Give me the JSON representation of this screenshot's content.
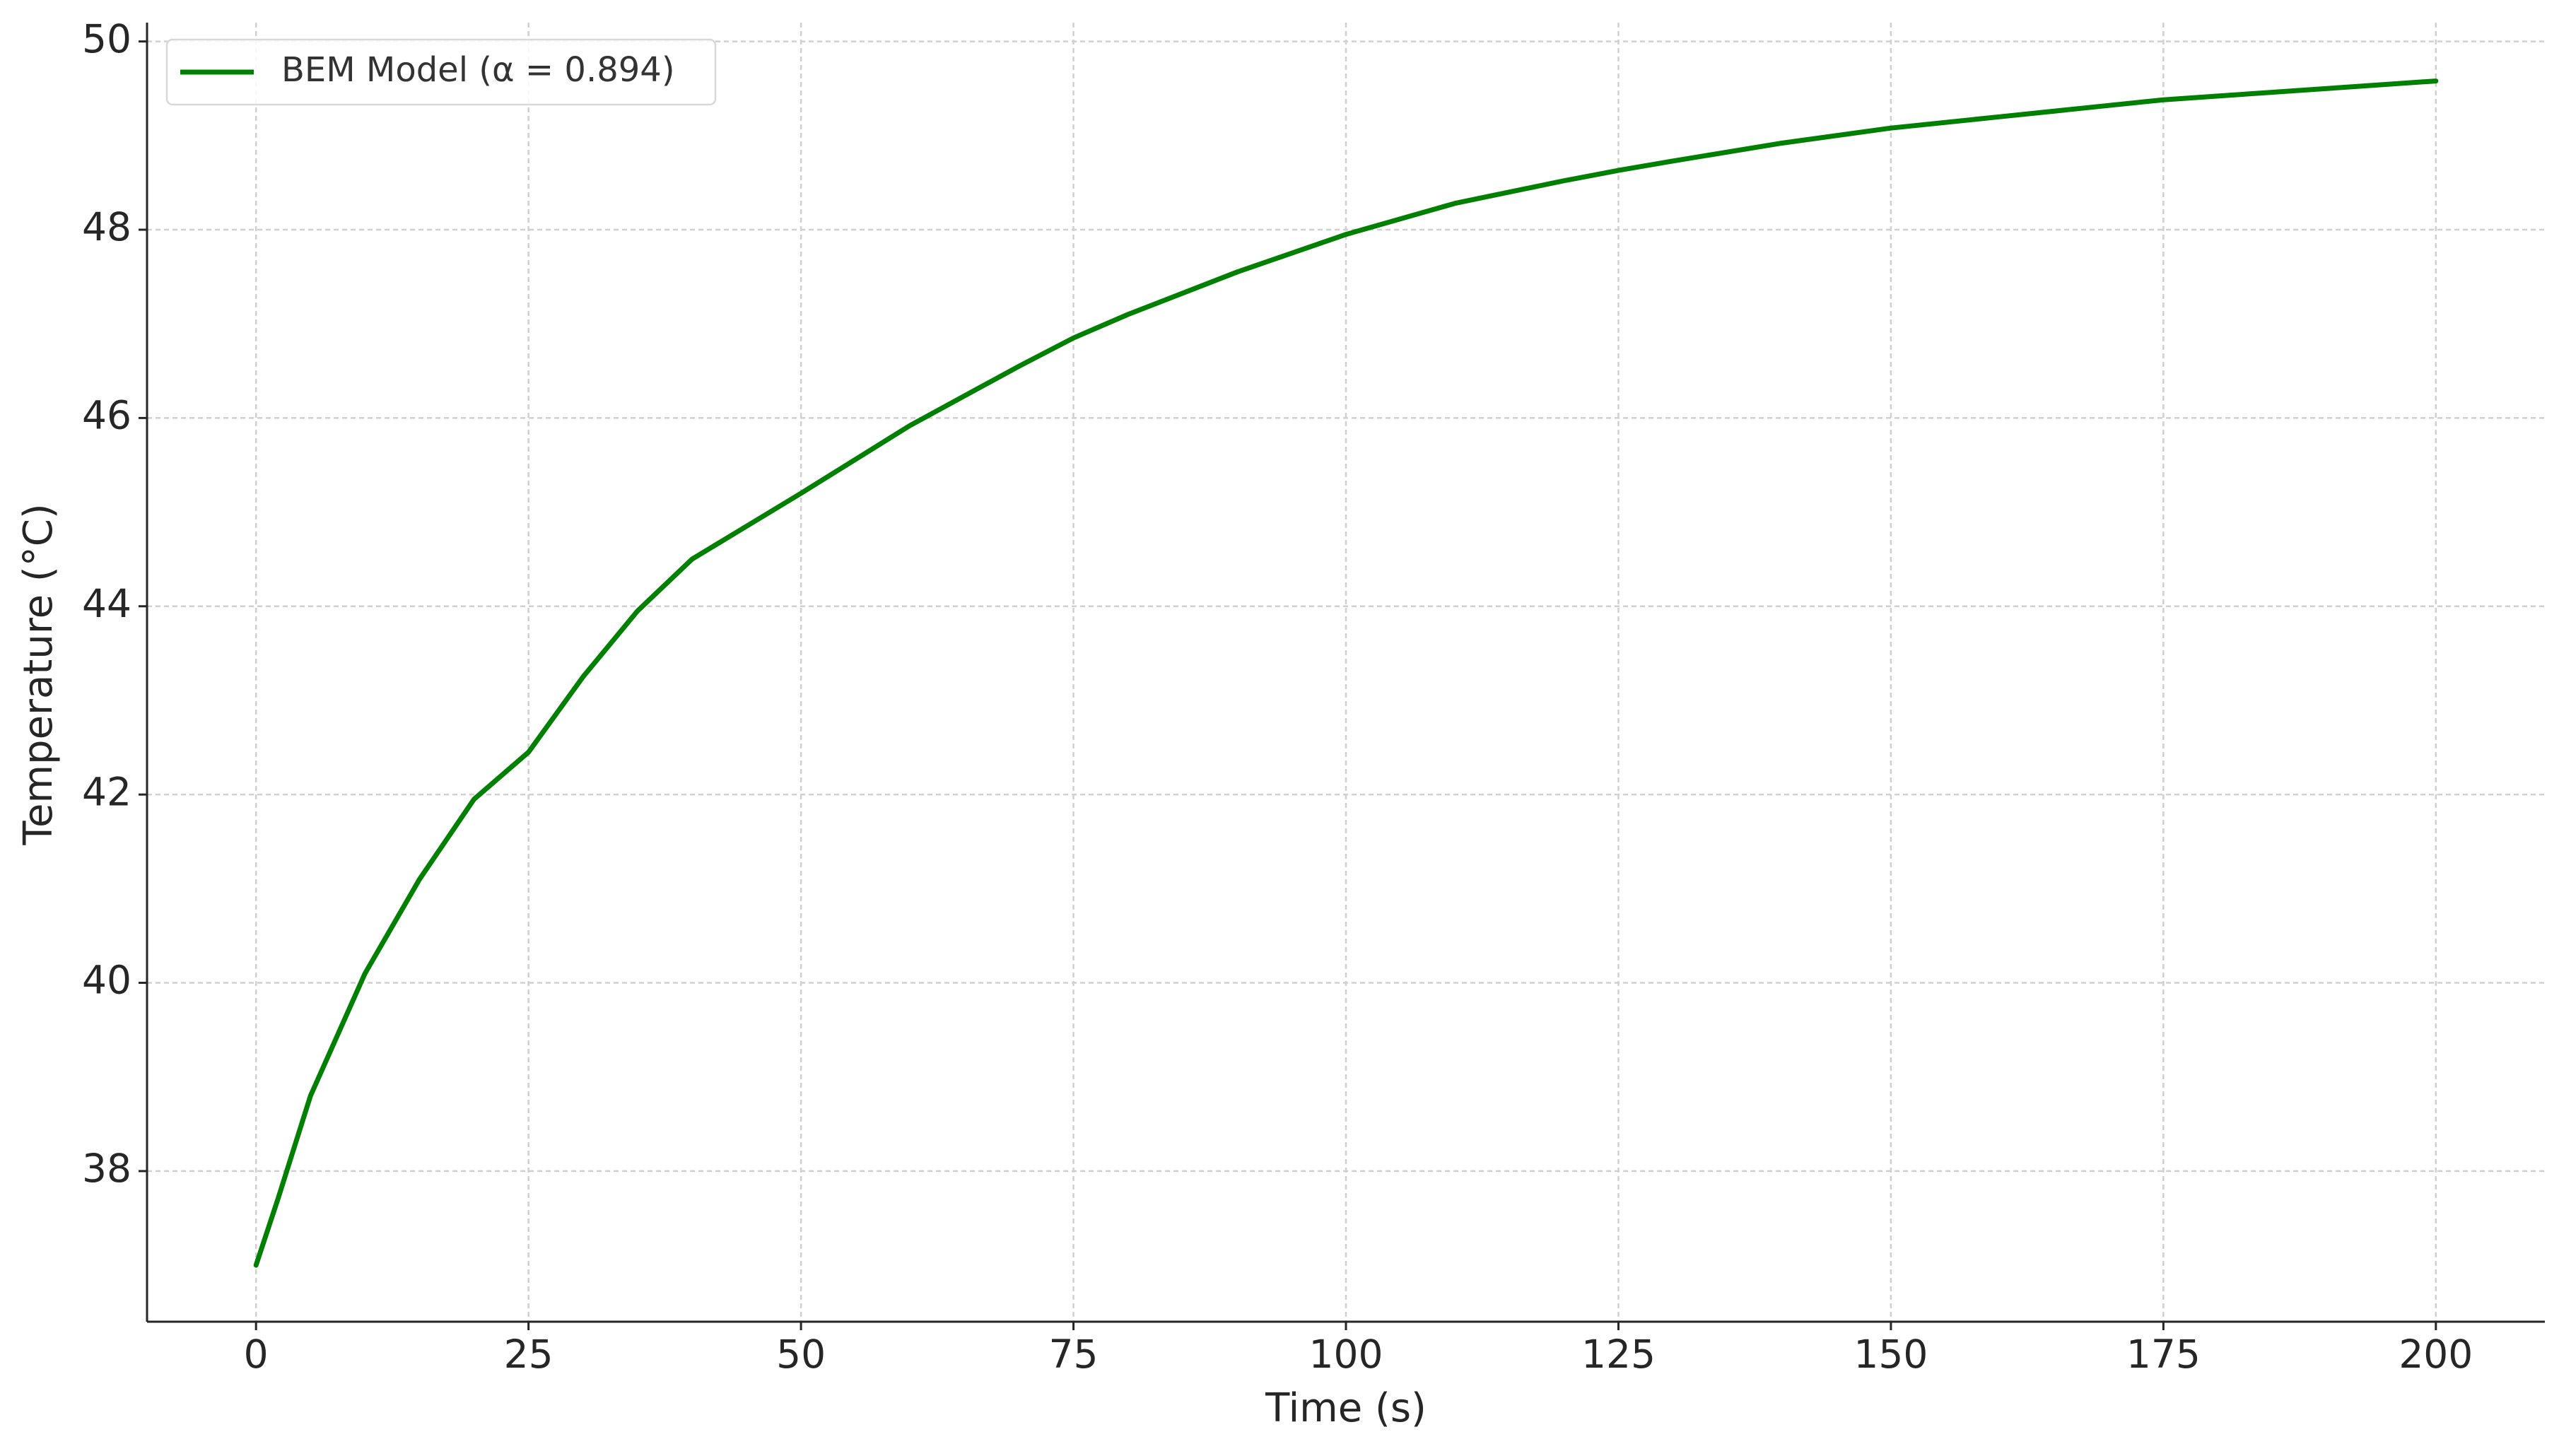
{
  "chart_data": {
    "type": "line",
    "xlabel": "Time (s)",
    "ylabel": "Temperature (°C)",
    "x": [
      0,
      2,
      5,
      10,
      15,
      20,
      25,
      30,
      35,
      40,
      50,
      60,
      70,
      75,
      80,
      90,
      100,
      110,
      120,
      125,
      130,
      140,
      150,
      160,
      170,
      175,
      180,
      190,
      200
    ],
    "series": [
      {
        "name": "BEM Model (α = 0.894)",
        "color": "#008000",
        "values": [
          37.0,
          37.7,
          38.8,
          40.1,
          41.1,
          41.95,
          42.45,
          43.25,
          43.95,
          44.5,
          45.2,
          45.92,
          46.55,
          46.85,
          47.1,
          47.55,
          47.95,
          48.28,
          48.52,
          48.63,
          48.73,
          48.92,
          49.08,
          49.2,
          49.32,
          49.38,
          49.42,
          49.5,
          49.58
        ]
      }
    ],
    "xlim": [
      -10,
      210
    ],
    "ylim": [
      36.4,
      50.2
    ],
    "xticks": [
      0,
      25,
      50,
      75,
      100,
      125,
      150,
      175,
      200
    ],
    "yticks": [
      38,
      40,
      42,
      44,
      46,
      48,
      50
    ],
    "grid": true,
    "legend": "upper left"
  }
}
